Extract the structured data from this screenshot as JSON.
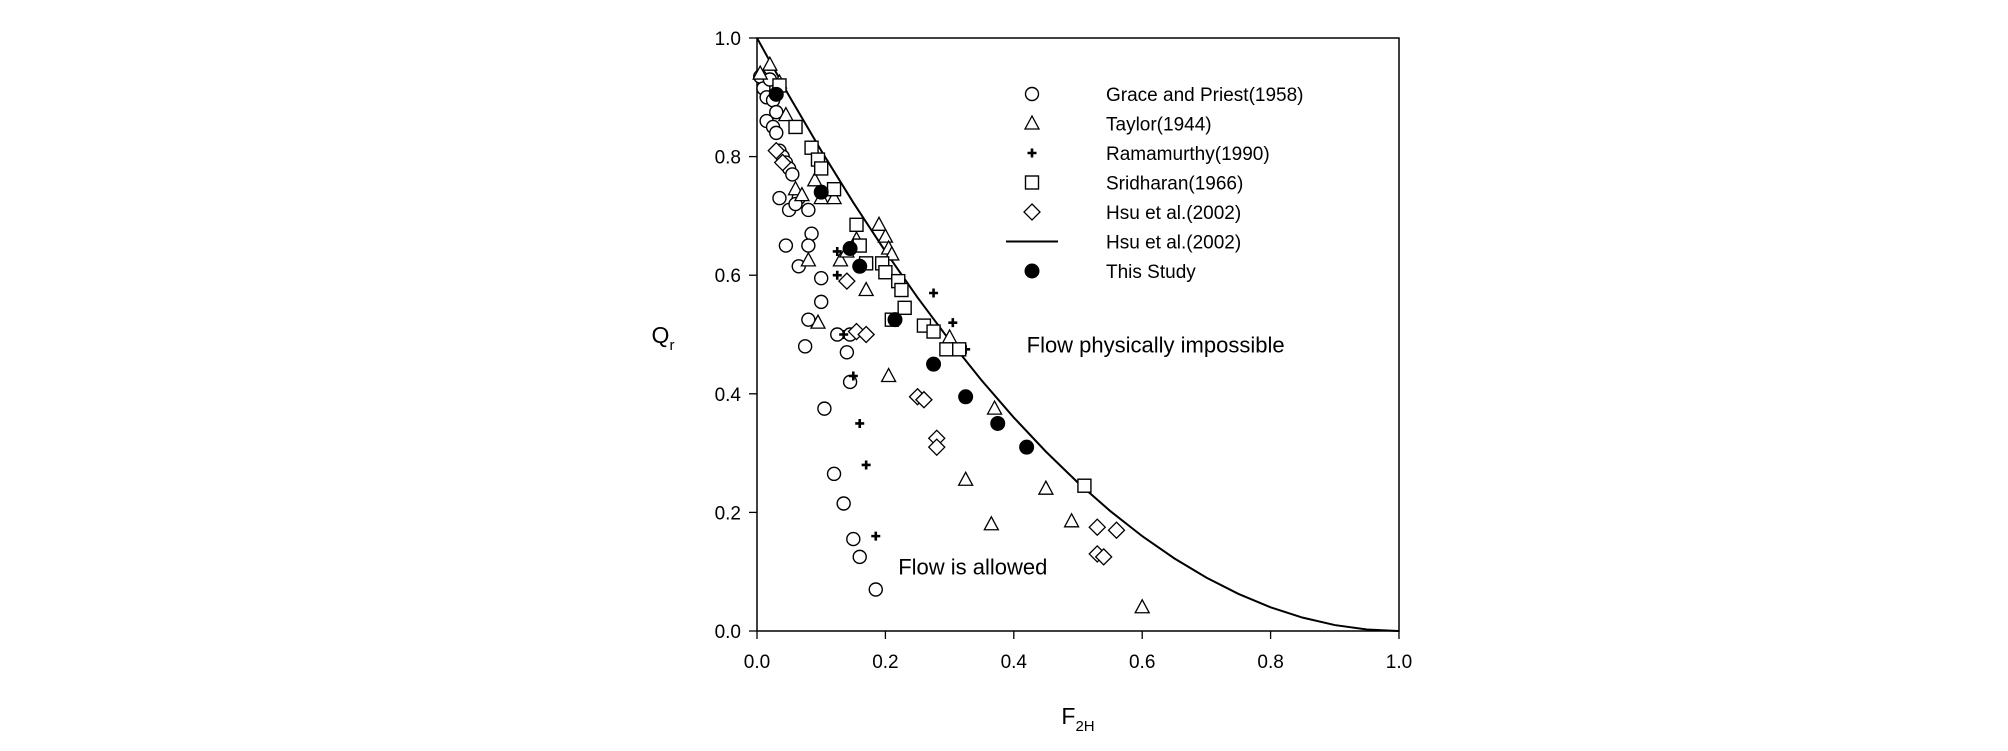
{
  "chart_data": {
    "type": "scatter",
    "title": "",
    "xlabel": {
      "base": "F",
      "sub": "2H"
    },
    "ylabel": {
      "base": "Q",
      "sub": "r"
    },
    "xlim": [
      0,
      1
    ],
    "ylim": [
      0,
      1
    ],
    "xticks": [
      "0.0",
      "0.2",
      "0.4",
      "0.6",
      "0.8",
      "1.0"
    ],
    "yticks": [
      "0.0",
      "0.2",
      "0.4",
      "0.6",
      "0.8",
      "1.0"
    ],
    "grid": false,
    "legend_position": "top-right",
    "annotations": [
      {
        "text": "Flow physically impossible",
        "x": 0.42,
        "y": 0.47
      },
      {
        "text": "Flow is allowed",
        "x": 0.22,
        "y": 0.095
      }
    ],
    "series": [
      {
        "name": "Grace and Priest(1958)",
        "marker": "circle-open",
        "points": [
          [
            0.005,
            0.935
          ],
          [
            0.01,
            0.915
          ],
          [
            0.015,
            0.9
          ],
          [
            0.02,
            0.93
          ],
          [
            0.025,
            0.895
          ],
          [
            0.015,
            0.86
          ],
          [
            0.03,
            0.875
          ],
          [
            0.025,
            0.85
          ],
          [
            0.03,
            0.84
          ],
          [
            0.035,
            0.81
          ],
          [
            0.04,
            0.8
          ],
          [
            0.045,
            0.79
          ],
          [
            0.05,
            0.78
          ],
          [
            0.055,
            0.77
          ],
          [
            0.035,
            0.73
          ],
          [
            0.05,
            0.71
          ],
          [
            0.065,
            0.73
          ],
          [
            0.06,
            0.72
          ],
          [
            0.08,
            0.71
          ],
          [
            0.085,
            0.67
          ],
          [
            0.08,
            0.65
          ],
          [
            0.045,
            0.65
          ],
          [
            0.065,
            0.615
          ],
          [
            0.1,
            0.595
          ],
          [
            0.1,
            0.555
          ],
          [
            0.08,
            0.525
          ],
          [
            0.125,
            0.5
          ],
          [
            0.145,
            0.5
          ],
          [
            0.075,
            0.48
          ],
          [
            0.14,
            0.47
          ],
          [
            0.145,
            0.42
          ],
          [
            0.105,
            0.375
          ],
          [
            0.12,
            0.265
          ],
          [
            0.135,
            0.215
          ],
          [
            0.15,
            0.155
          ],
          [
            0.16,
            0.125
          ],
          [
            0.185,
            0.07
          ]
        ]
      },
      {
        "name": "Taylor(1944)",
        "marker": "triangle-open",
        "points": [
          [
            0.005,
            0.94
          ],
          [
            0.02,
            0.955
          ],
          [
            0.035,
            0.925
          ],
          [
            0.045,
            0.87
          ],
          [
            0.06,
            0.745
          ],
          [
            0.07,
            0.735
          ],
          [
            0.08,
            0.625
          ],
          [
            0.09,
            0.76
          ],
          [
            0.1,
            0.73
          ],
          [
            0.12,
            0.73
          ],
          [
            0.13,
            0.625
          ],
          [
            0.14,
            0.64
          ],
          [
            0.155,
            0.66
          ],
          [
            0.17,
            0.575
          ],
          [
            0.19,
            0.685
          ],
          [
            0.2,
            0.665
          ],
          [
            0.205,
            0.645
          ],
          [
            0.21,
            0.635
          ],
          [
            0.095,
            0.52
          ],
          [
            0.205,
            0.43
          ],
          [
            0.3,
            0.495
          ],
          [
            0.325,
            0.255
          ],
          [
            0.365,
            0.18
          ],
          [
            0.37,
            0.375
          ],
          [
            0.45,
            0.24
          ],
          [
            0.49,
            0.185
          ],
          [
            0.6,
            0.04
          ]
        ]
      },
      {
        "name": "Ramamurthy(1990)",
        "marker": "plus",
        "points": [
          [
            0.125,
            0.64
          ],
          [
            0.125,
            0.6
          ],
          [
            0.135,
            0.5
          ],
          [
            0.15,
            0.43
          ],
          [
            0.16,
            0.35
          ],
          [
            0.17,
            0.28
          ],
          [
            0.185,
            0.16
          ],
          [
            0.275,
            0.57
          ],
          [
            0.305,
            0.52
          ],
          [
            0.325,
            0.475
          ]
        ]
      },
      {
        "name": "Sridharan(1966)",
        "marker": "square-open",
        "points": [
          [
            0.035,
            0.92
          ],
          [
            0.06,
            0.85
          ],
          [
            0.085,
            0.815
          ],
          [
            0.095,
            0.795
          ],
          [
            0.1,
            0.78
          ],
          [
            0.12,
            0.745
          ],
          [
            0.155,
            0.685
          ],
          [
            0.16,
            0.65
          ],
          [
            0.17,
            0.62
          ],
          [
            0.195,
            0.62
          ],
          [
            0.2,
            0.605
          ],
          [
            0.22,
            0.59
          ],
          [
            0.225,
            0.575
          ],
          [
            0.23,
            0.545
          ],
          [
            0.21,
            0.525
          ],
          [
            0.26,
            0.515
          ],
          [
            0.275,
            0.505
          ],
          [
            0.295,
            0.475
          ],
          [
            0.315,
            0.475
          ],
          [
            0.51,
            0.245
          ]
        ]
      },
      {
        "name": "Hsu et al.(2002)",
        "marker": "diamond-open",
        "points": [
          [
            0.03,
            0.81
          ],
          [
            0.04,
            0.79
          ],
          [
            0.14,
            0.59
          ],
          [
            0.155,
            0.505
          ],
          [
            0.17,
            0.5
          ],
          [
            0.25,
            0.395
          ],
          [
            0.26,
            0.39
          ],
          [
            0.28,
            0.325
          ],
          [
            0.28,
            0.31
          ],
          [
            0.53,
            0.175
          ],
          [
            0.53,
            0.13
          ],
          [
            0.54,
            0.125
          ],
          [
            0.56,
            0.17
          ]
        ]
      },
      {
        "name": "Hsu et al.(2002)",
        "marker": "line",
        "curve": [
          [
            0.0,
            1.0
          ],
          [
            0.05,
            0.9025
          ],
          [
            0.1,
            0.81
          ],
          [
            0.15,
            0.7225
          ],
          [
            0.2,
            0.64
          ],
          [
            0.25,
            0.5625
          ],
          [
            0.3,
            0.49
          ],
          [
            0.35,
            0.4225
          ],
          [
            0.4,
            0.36
          ],
          [
            0.45,
            0.3025
          ],
          [
            0.5,
            0.25
          ],
          [
            0.55,
            0.2025
          ],
          [
            0.6,
            0.16
          ],
          [
            0.65,
            0.1225
          ],
          [
            0.7,
            0.09
          ],
          [
            0.75,
            0.0625
          ],
          [
            0.8,
            0.04
          ],
          [
            0.85,
            0.0225
          ],
          [
            0.9,
            0.01
          ],
          [
            0.95,
            0.0025
          ],
          [
            1.0,
            0.0
          ]
        ]
      },
      {
        "name": "This Study",
        "marker": "circle-filled",
        "points": [
          [
            0.03,
            0.905
          ],
          [
            0.1,
            0.74
          ],
          [
            0.145,
            0.645
          ],
          [
            0.16,
            0.615
          ],
          [
            0.215,
            0.525
          ],
          [
            0.275,
            0.45
          ],
          [
            0.325,
            0.395
          ],
          [
            0.375,
            0.35
          ],
          [
            0.42,
            0.31
          ]
        ]
      }
    ]
  }
}
